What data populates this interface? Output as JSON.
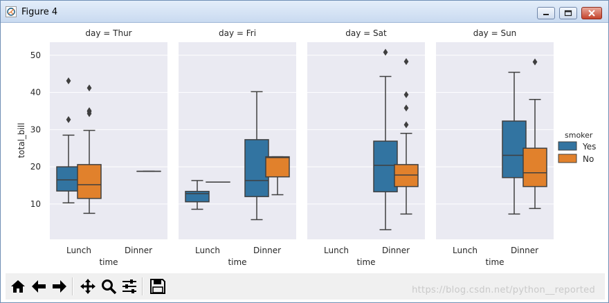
{
  "window": {
    "title": "Figure 4"
  },
  "toolbar": {
    "buttons": [
      {
        "name": "home-button",
        "icon": "home-icon"
      },
      {
        "name": "back-button",
        "icon": "arrow-left-icon"
      },
      {
        "name": "forward-button",
        "icon": "arrow-right-icon"
      },
      {
        "name": "pan-button",
        "icon": "move-icon"
      },
      {
        "name": "zoom-button",
        "icon": "magnifier-icon"
      },
      {
        "name": "configure-subplots-button",
        "icon": "sliders-icon"
      },
      {
        "name": "save-button",
        "icon": "floppy-disk-icon"
      }
    ],
    "watermark": "https://blog.csdn.net/python__reported"
  },
  "colors": {
    "Yes": "#3274a1",
    "No": "#e1812c",
    "panel_bg": "#eaeaf2",
    "grid": "#ffffff",
    "line": "#3f3f3f"
  },
  "chart_data": {
    "type": "boxplot",
    "xlabel": "time",
    "ylabel": "total_bill",
    "ylim": [
      0.5,
      53.5
    ],
    "yticks": [
      10,
      20,
      30,
      40,
      50
    ],
    "categories": [
      "Lunch",
      "Dinner"
    ],
    "legend": {
      "title": "smoker",
      "entries": [
        "Yes",
        "No"
      ],
      "position": "right"
    },
    "panels": [
      {
        "title": "day = Thur",
        "boxes": [
          {
            "time": "Lunch",
            "smoker": "Yes",
            "whislo": 10.3,
            "q1": 13.5,
            "med": 16.5,
            "q3": 20.0,
            "whishi": 28.5,
            "fliers": [
              32.7,
              43.1
            ]
          },
          {
            "time": "Lunch",
            "smoker": "No",
            "whislo": 7.5,
            "q1": 11.5,
            "med": 15.2,
            "q3": 20.6,
            "whishi": 29.8,
            "fliers": [
              34.3,
              34.8,
              35.1,
              41.2
            ]
          },
          {
            "time": "Dinner",
            "smoker": "No",
            "whislo": 18.8,
            "q1": 18.8,
            "med": 18.8,
            "q3": 18.8,
            "whishi": 18.8,
            "fliers": []
          }
        ]
      },
      {
        "title": "day = Fri",
        "boxes": [
          {
            "time": "Lunch",
            "smoker": "Yes",
            "whislo": 8.6,
            "q1": 10.6,
            "med": 12.8,
            "q3": 13.4,
            "whishi": 16.3,
            "fliers": []
          },
          {
            "time": "Lunch",
            "smoker": "No",
            "whislo": 15.9,
            "q1": 15.9,
            "med": 15.9,
            "q3": 15.9,
            "whishi": 15.9,
            "fliers": []
          },
          {
            "time": "Dinner",
            "smoker": "Yes",
            "whislo": 5.8,
            "q1": 12.0,
            "med": 16.3,
            "q3": 27.3,
            "whishi": 40.2,
            "fliers": []
          },
          {
            "time": "Dinner",
            "smoker": "No",
            "whislo": 12.5,
            "q1": 17.3,
            "med": 22.5,
            "q3": 22.7,
            "whishi": 22.7,
            "fliers": []
          }
        ]
      },
      {
        "title": "day = Sat",
        "boxes": [
          {
            "time": "Dinner",
            "smoker": "Yes",
            "whislo": 3.1,
            "q1": 13.3,
            "med": 20.4,
            "q3": 26.9,
            "whishi": 44.3,
            "fliers": [
              50.8
            ]
          },
          {
            "time": "Dinner",
            "smoker": "No",
            "whislo": 7.3,
            "q1": 14.7,
            "med": 17.8,
            "q3": 20.6,
            "whishi": 29.0,
            "fliers": [
              31.3,
              35.8,
              39.4,
              48.3
            ]
          }
        ]
      },
      {
        "title": "day = Sun",
        "boxes": [
          {
            "time": "Dinner",
            "smoker": "Yes",
            "whislo": 7.3,
            "q1": 17.1,
            "med": 23.1,
            "q3": 32.3,
            "whishi": 45.4,
            "fliers": []
          },
          {
            "time": "Dinner",
            "smoker": "No",
            "whislo": 8.8,
            "q1": 14.7,
            "med": 18.4,
            "q3": 25.0,
            "whishi": 38.1,
            "fliers": [
              48.2
            ]
          }
        ]
      }
    ]
  }
}
